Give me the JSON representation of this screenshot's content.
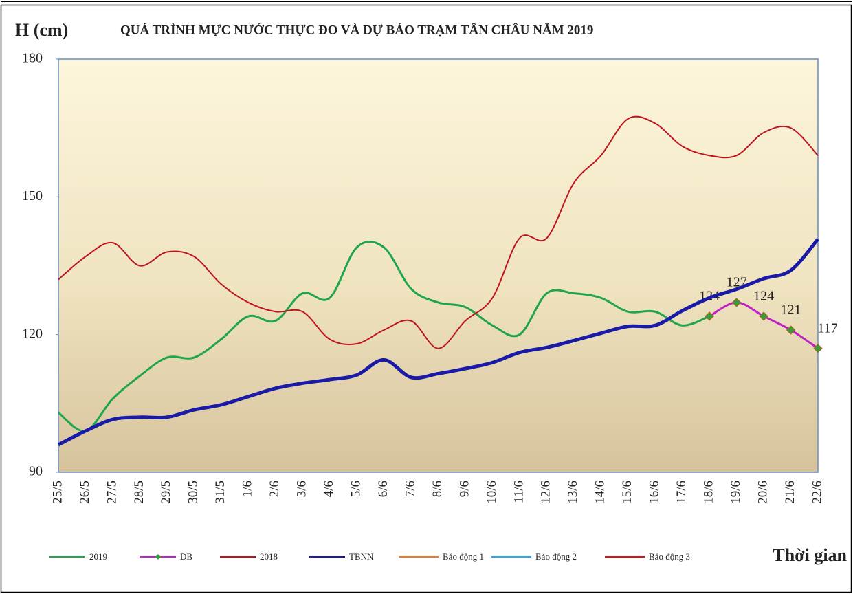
{
  "chart_data": {
    "type": "line",
    "title": "QUÁ TRÌNH MỰC NƯỚC THỰC ĐO VÀ DỰ BÁO TRẠM TÂN CHÂU NĂM 2019",
    "y_label": "H (cm)",
    "x_label": "Thời gian",
    "categories": [
      "25/5",
      "26/5",
      "27/5",
      "28/5",
      "29/5",
      "30/5",
      "31/5",
      "1/6",
      "2/6",
      "3/6",
      "4/6",
      "5/6",
      "6/6",
      "7/6",
      "8/6",
      "9/6",
      "10/6",
      "11/6",
      "12/6",
      "13/6",
      "14/6",
      "15/6",
      "16/6",
      "17/6",
      "18/6",
      "19/6",
      "20/6",
      "21/6",
      "22/6"
    ],
    "ylim": [
      90,
      180
    ],
    "yticks": [
      90,
      120,
      150,
      180
    ],
    "grid": false,
    "series": [
      {
        "name": "2019",
        "color": "#1fa64a",
        "values": [
          103,
          99,
          106,
          111,
          115,
          115,
          119,
          124,
          123,
          129,
          128,
          139,
          139,
          130,
          127,
          126,
          122,
          120,
          129,
          129,
          128,
          125,
          125,
          122,
          124,
          null,
          null,
          null,
          null
        ]
      },
      {
        "name": "DB",
        "color": "#c020c8",
        "marker": "diamond",
        "marker_color": "#3a9a3a",
        "data_labels": true,
        "values": [
          null,
          null,
          null,
          null,
          null,
          null,
          null,
          null,
          null,
          null,
          null,
          null,
          null,
          null,
          null,
          null,
          null,
          null,
          null,
          null,
          null,
          null,
          null,
          null,
          124,
          127,
          124,
          121,
          117
        ]
      },
      {
        "name": "2018",
        "color": "#c0141c",
        "values": [
          132,
          137,
          140,
          135,
          138,
          137,
          131,
          127,
          125,
          125,
          119,
          118,
          121,
          123,
          117,
          123,
          128,
          141,
          141,
          153,
          159,
          167,
          166,
          161,
          159,
          159,
          164,
          165,
          159
        ]
      },
      {
        "name": "TBNN",
        "color": "#1a1aa8",
        "values": [
          96,
          99,
          101.5,
          102,
          102,
          103.6,
          104.7,
          106.5,
          108.3,
          109.4,
          110.2,
          111.2,
          114.5,
          110.7,
          111.5,
          112.6,
          113.9,
          116.1,
          117.2,
          118.7,
          120.3,
          121.8,
          122,
          125.2,
          128,
          129.9,
          132.2,
          134,
          140.8
        ]
      },
      {
        "name": "Báo động 1",
        "color": "#f07820",
        "values": [
          null,
          null,
          null,
          null,
          null,
          null,
          null,
          null,
          null,
          null,
          null,
          null,
          null,
          null,
          null,
          null,
          null,
          null,
          null,
          null,
          null,
          null,
          null,
          null,
          null,
          null,
          null,
          null,
          null
        ]
      },
      {
        "name": "Báo động 2",
        "color": "#20b0f0",
        "values": [
          null,
          null,
          null,
          null,
          null,
          null,
          null,
          null,
          null,
          null,
          null,
          null,
          null,
          null,
          null,
          null,
          null,
          null,
          null,
          null,
          null,
          null,
          null,
          null,
          null,
          null,
          null,
          null,
          null
        ]
      },
      {
        "name": "Báo động 3",
        "color": "#e01010",
        "values": [
          null,
          null,
          null,
          null,
          null,
          null,
          null,
          null,
          null,
          null,
          null,
          null,
          null,
          null,
          null,
          null,
          null,
          null,
          null,
          null,
          null,
          null,
          null,
          null,
          null,
          null,
          null,
          null,
          null
        ]
      }
    ]
  }
}
